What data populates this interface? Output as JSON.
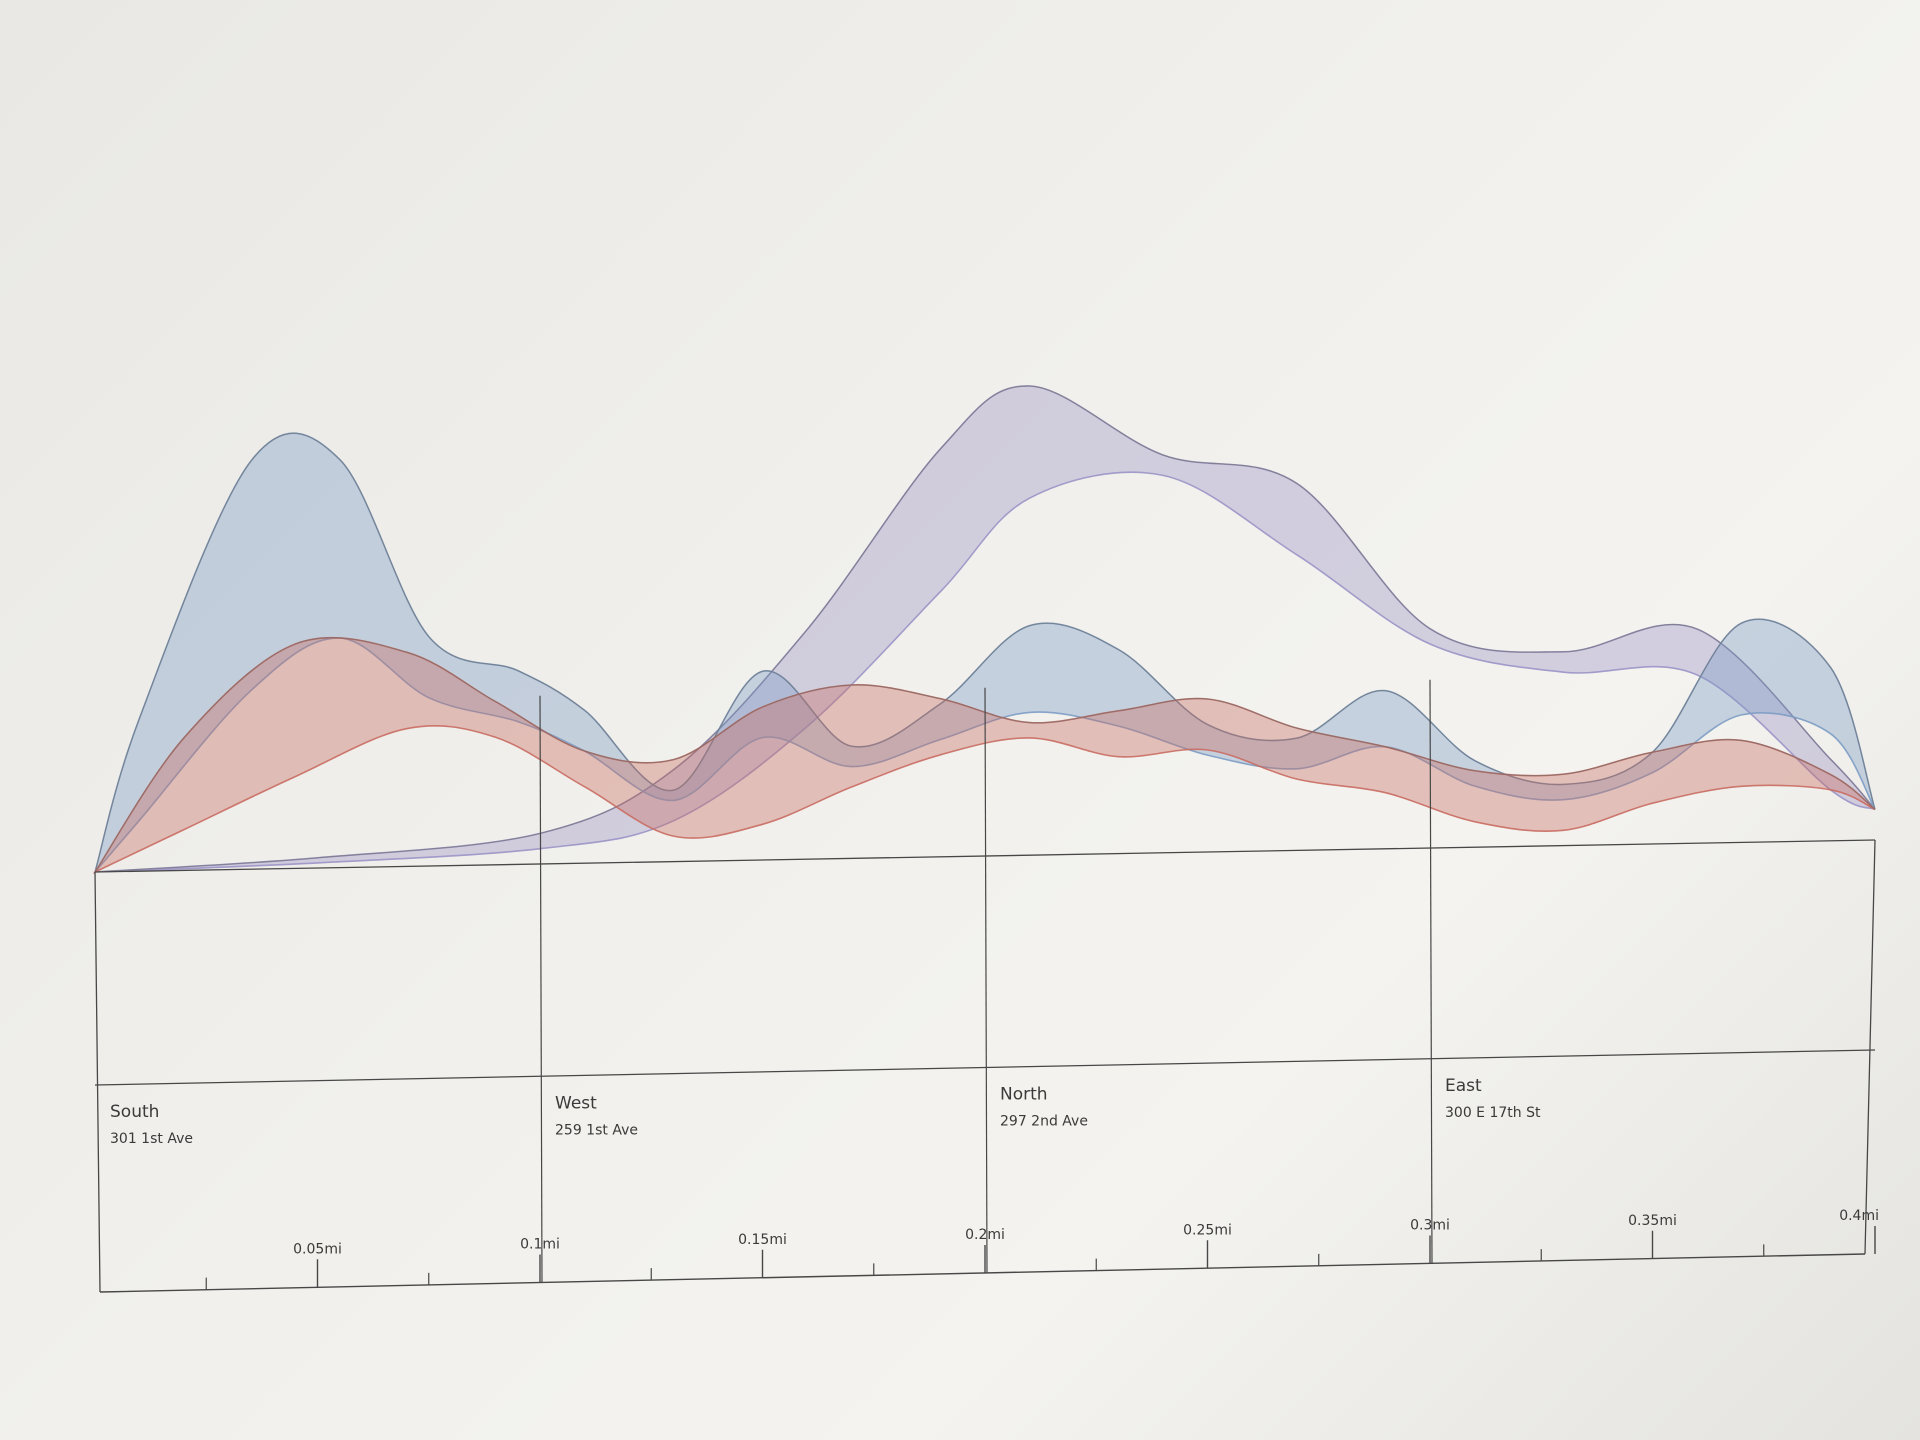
{
  "chart_data": {
    "type": "area",
    "title": "",
    "xlabel": "",
    "ylabel": "",
    "xlim": [
      0,
      0.4
    ],
    "x_unit": "mi",
    "grid": false,
    "x_ticks": [
      {
        "value": 0.05,
        "label": "0.05mi"
      },
      {
        "value": 0.1,
        "label": "0.1mi"
      },
      {
        "value": 0.15,
        "label": "0.15mi"
      },
      {
        "value": 0.2,
        "label": "0.2mi"
      },
      {
        "value": 0.25,
        "label": "0.25mi"
      },
      {
        "value": 0.3,
        "label": "0.3mi"
      },
      {
        "value": 0.35,
        "label": "0.35mi"
      },
      {
        "value": 0.4,
        "label": "0.4mi"
      }
    ],
    "sites": [
      {
        "name": "South",
        "address": "301 1st Ave",
        "x": 0.0
      },
      {
        "name": "West",
        "address": "259 1st Ave",
        "x": 0.1
      },
      {
        "name": "North",
        "address": "297 2nd Ave",
        "x": 0.2
      },
      {
        "name": "East",
        "address": "300 E 17th St",
        "x": 0.3
      }
    ],
    "bands": [
      {
        "color": "#9a94c6",
        "x": [
          0.0,
          0.05,
          0.1,
          0.13,
          0.16,
          0.19,
          0.21,
          0.24,
          0.27,
          0.3,
          0.33,
          0.36,
          0.39,
          0.4
        ],
        "upper": [
          0.0,
          0.02,
          0.06,
          0.18,
          0.45,
          0.8,
          0.92,
          0.78,
          0.72,
          0.43,
          0.38,
          0.42,
          0.16,
          0.06
        ],
        "lower": [
          0.0,
          0.01,
          0.03,
          0.08,
          0.26,
          0.52,
          0.7,
          0.74,
          0.58,
          0.4,
          0.34,
          0.33,
          0.1,
          0.06
        ]
      },
      {
        "color": "#7c9cc4",
        "x": [
          0.0,
          0.01,
          0.035,
          0.055,
          0.075,
          0.095,
          0.11,
          0.13,
          0.15,
          0.17,
          0.19,
          0.21,
          0.23,
          0.25,
          0.27,
          0.29,
          0.31,
          0.33,
          0.35,
          0.37,
          0.39,
          0.4
        ],
        "upper": [
          0.0,
          0.3,
          0.8,
          0.8,
          0.45,
          0.38,
          0.3,
          0.14,
          0.37,
          0.22,
          0.3,
          0.45,
          0.4,
          0.25,
          0.22,
          0.31,
          0.17,
          0.12,
          0.18,
          0.43,
          0.34,
          0.06
        ],
        "lower": [
          0.0,
          0.1,
          0.35,
          0.45,
          0.33,
          0.28,
          0.22,
          0.12,
          0.24,
          0.18,
          0.23,
          0.28,
          0.25,
          0.19,
          0.16,
          0.2,
          0.12,
          0.09,
          0.14,
          0.25,
          0.21,
          0.06
        ]
      },
      {
        "color": "#c96b62",
        "x": [
          0.0,
          0.02,
          0.045,
          0.07,
          0.09,
          0.11,
          0.13,
          0.15,
          0.17,
          0.19,
          0.21,
          0.23,
          0.25,
          0.27,
          0.29,
          0.31,
          0.33,
          0.35,
          0.37,
          0.39,
          0.4
        ],
        "upper": [
          0.0,
          0.26,
          0.44,
          0.42,
          0.32,
          0.22,
          0.2,
          0.3,
          0.34,
          0.31,
          0.26,
          0.28,
          0.3,
          0.24,
          0.2,
          0.15,
          0.14,
          0.18,
          0.2,
          0.13,
          0.06
        ],
        "lower": [
          0.0,
          0.08,
          0.18,
          0.27,
          0.25,
          0.15,
          0.05,
          0.07,
          0.14,
          0.2,
          0.23,
          0.19,
          0.2,
          0.14,
          0.11,
          0.05,
          0.03,
          0.08,
          0.11,
          0.1,
          0.06
        ]
      }
    ]
  }
}
